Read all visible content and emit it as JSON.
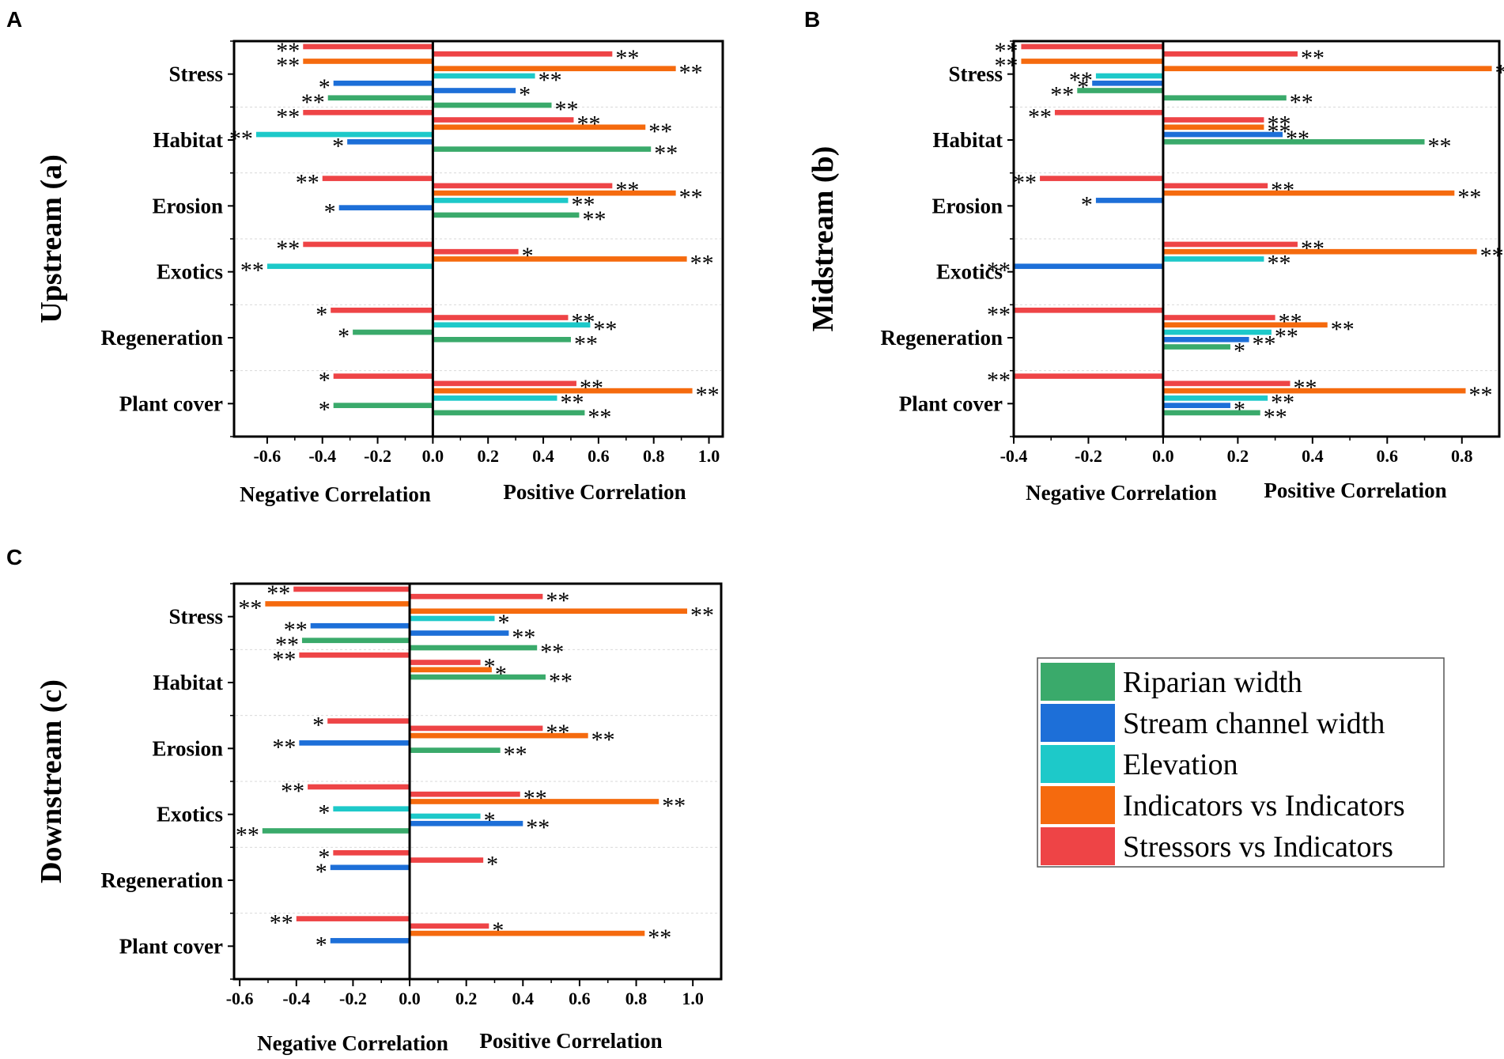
{
  "panels": [
    {
      "letter": "A"
    },
    {
      "letter": "B"
    },
    {
      "letter": "C"
    }
  ],
  "colors": {
    "Riparian width": "#3aaa6b",
    "Stream channel width": "#1d6fd8",
    "Elevation": "#1dc9c9",
    "Indicators vs Indicators": "#f56a0e",
    "Stressors vs Indicators": "#ee4446"
  },
  "chart_data": [
    {
      "type": "bar",
      "orientation": "horizontal",
      "ylabel": "Upstream (a)",
      "xlabel_negative": "Negative Correlation",
      "xlabel_positive": "Positive Correlation",
      "xlim": [
        -0.72,
        1.05
      ],
      "xticks": [
        "-0.6",
        "-0.4",
        "-0.2",
        "0.0",
        "0.2",
        "0.4",
        "0.6",
        "0.8",
        "1.0"
      ],
      "categories": [
        "Stress",
        "Habitat",
        "Erosion",
        "Exotics",
        "Regeneration",
        "Plant cover"
      ],
      "bars": [
        {
          "category": "Stress",
          "series": "Stressors vs Indicators",
          "slot": 0,
          "value": -0.47,
          "sig": "**"
        },
        {
          "category": "Stress",
          "series": "Stressors vs Indicators",
          "slot": 1,
          "value": 0.65,
          "sig": "**"
        },
        {
          "category": "Stress",
          "series": "Indicators vs Indicators",
          "slot": 2,
          "value": -0.47,
          "sig": "**"
        },
        {
          "category": "Stress",
          "series": "Indicators vs Indicators",
          "slot": 3,
          "value": 0.88,
          "sig": "**"
        },
        {
          "category": "Stress",
          "series": "Elevation",
          "slot": 4,
          "value": 0.37,
          "sig": "**"
        },
        {
          "category": "Stress",
          "series": "Stream channel width",
          "slot": 5,
          "value": -0.36,
          "sig": "*"
        },
        {
          "category": "Stress",
          "series": "Stream channel width",
          "slot": 6,
          "value": 0.3,
          "sig": "*"
        },
        {
          "category": "Stress",
          "series": "Riparian width",
          "slot": 7,
          "value": -0.38,
          "sig": "**"
        },
        {
          "category": "Stress",
          "series": "Riparian width",
          "slot": 8,
          "value": 0.43,
          "sig": "**"
        },
        {
          "category": "Habitat",
          "series": "Stressors vs Indicators",
          "slot": 0,
          "value": -0.47,
          "sig": "**"
        },
        {
          "category": "Habitat",
          "series": "Stressors vs Indicators",
          "slot": 1,
          "value": 0.51,
          "sig": "**"
        },
        {
          "category": "Habitat",
          "series": "Indicators vs Indicators",
          "slot": 2,
          "value": 0.77,
          "sig": "**"
        },
        {
          "category": "Habitat",
          "series": "Elevation",
          "slot": 3,
          "value": -0.64,
          "sig": "**"
        },
        {
          "category": "Habitat",
          "series": "Stream channel width",
          "slot": 4,
          "value": -0.31,
          "sig": "*"
        },
        {
          "category": "Habitat",
          "series": "Riparian width",
          "slot": 5,
          "value": 0.79,
          "sig": "**"
        },
        {
          "category": "Erosion",
          "series": "Stressors vs Indicators",
          "slot": 0,
          "value": -0.4,
          "sig": "**"
        },
        {
          "category": "Erosion",
          "series": "Stressors vs Indicators",
          "slot": 1,
          "value": 0.65,
          "sig": "**"
        },
        {
          "category": "Erosion",
          "series": "Indicators vs Indicators",
          "slot": 2,
          "value": 0.88,
          "sig": "**"
        },
        {
          "category": "Erosion",
          "series": "Elevation",
          "slot": 3,
          "value": 0.49,
          "sig": "**"
        },
        {
          "category": "Erosion",
          "series": "Stream channel width",
          "slot": 4,
          "value": -0.34,
          "sig": "*"
        },
        {
          "category": "Erosion",
          "series": "Riparian width",
          "slot": 5,
          "value": 0.53,
          "sig": "**"
        },
        {
          "category": "Exotics",
          "series": "Stressors vs Indicators",
          "slot": 0,
          "value": -0.47,
          "sig": "**"
        },
        {
          "category": "Exotics",
          "series": "Stressors vs Indicators",
          "slot": 1,
          "value": 0.31,
          "sig": "*"
        },
        {
          "category": "Exotics",
          "series": "Indicators vs Indicators",
          "slot": 2,
          "value": 0.92,
          "sig": "**"
        },
        {
          "category": "Exotics",
          "series": "Elevation",
          "slot": 3,
          "value": -0.6,
          "sig": "**"
        },
        {
          "category": "Regeneration",
          "series": "Stressors vs Indicators",
          "slot": 0,
          "value": -0.37,
          "sig": "*"
        },
        {
          "category": "Regeneration",
          "series": "Stressors vs Indicators",
          "slot": 1,
          "value": 0.49,
          "sig": "**"
        },
        {
          "category": "Regeneration",
          "series": "Elevation",
          "slot": 2,
          "value": 0.57,
          "sig": "**"
        },
        {
          "category": "Regeneration",
          "series": "Riparian width",
          "slot": 3,
          "value": -0.29,
          "sig": "*"
        },
        {
          "category": "Regeneration",
          "series": "Riparian width",
          "slot": 4,
          "value": 0.5,
          "sig": "**"
        },
        {
          "category": "Plant cover",
          "series": "Stressors vs Indicators",
          "slot": 0,
          "value": -0.36,
          "sig": "*"
        },
        {
          "category": "Plant cover",
          "series": "Stressors vs Indicators",
          "slot": 1,
          "value": 0.52,
          "sig": "**"
        },
        {
          "category": "Plant cover",
          "series": "Indicators vs Indicators",
          "slot": 2,
          "value": 0.94,
          "sig": "**"
        },
        {
          "category": "Plant cover",
          "series": "Elevation",
          "slot": 3,
          "value": 0.45,
          "sig": "**"
        },
        {
          "category": "Plant cover",
          "series": "Riparian width",
          "slot": 4,
          "value": -0.36,
          "sig": "*"
        },
        {
          "category": "Plant cover",
          "series": "Riparian width",
          "slot": 5,
          "value": 0.55,
          "sig": "**"
        }
      ]
    },
    {
      "type": "bar",
      "orientation": "horizontal",
      "ylabel": "Midstream (b)",
      "xlabel_negative": "Negative Correlation",
      "xlabel_positive": "Positive Correlation",
      "xlim": [
        -0.4,
        0.9
      ],
      "xticks": [
        "-0.4",
        "-0.2",
        "0.0",
        "0.2",
        "0.4",
        "0.6",
        "0.8"
      ],
      "categories": [
        "Stress",
        "Habitat",
        "Erosion",
        "Exotics",
        "Regeneration",
        "Plant cover"
      ],
      "bars": [
        {
          "category": "Stress",
          "series": "Stressors vs Indicators",
          "slot": 0,
          "value": -0.38,
          "sig": "**"
        },
        {
          "category": "Stress",
          "series": "Stressors vs Indicators",
          "slot": 1,
          "value": 0.36,
          "sig": "**"
        },
        {
          "category": "Stress",
          "series": "Indicators vs Indicators",
          "slot": 2,
          "value": -0.38,
          "sig": "**"
        },
        {
          "category": "Stress",
          "series": "Indicators vs Indicators",
          "slot": 3,
          "value": 0.88,
          "sig": "**"
        },
        {
          "category": "Stress",
          "series": "Elevation",
          "slot": 4,
          "value": -0.18,
          "sig": "**"
        },
        {
          "category": "Stress",
          "series": "Stream channel width",
          "slot": 5,
          "value": -0.19,
          "sig": "*"
        },
        {
          "category": "Stress",
          "series": "Riparian width",
          "slot": 6,
          "value": -0.23,
          "sig": "**"
        },
        {
          "category": "Stress",
          "series": "Riparian width",
          "slot": 7,
          "value": 0.33,
          "sig": "**"
        },
        {
          "category": "Habitat",
          "series": "Stressors vs Indicators",
          "slot": 0,
          "value": -0.29,
          "sig": "**"
        },
        {
          "category": "Habitat",
          "series": "Stressors vs Indicators",
          "slot": 1,
          "value": 0.27,
          "sig": "**"
        },
        {
          "category": "Habitat",
          "series": "Indicators vs Indicators",
          "slot": 2,
          "value": 0.27,
          "sig": "**"
        },
        {
          "category": "Habitat",
          "series": "Stream channel width",
          "slot": 3,
          "value": 0.32,
          "sig": "**"
        },
        {
          "category": "Habitat",
          "series": "Riparian width",
          "slot": 4,
          "value": 0.7,
          "sig": "**"
        },
        {
          "category": "Erosion",
          "series": "Stressors vs Indicators",
          "slot": 0,
          "value": -0.33,
          "sig": "**"
        },
        {
          "category": "Erosion",
          "series": "Stressors vs Indicators",
          "slot": 1,
          "value": 0.28,
          "sig": "**"
        },
        {
          "category": "Erosion",
          "series": "Indicators vs Indicators",
          "slot": 2,
          "value": 0.78,
          "sig": "**"
        },
        {
          "category": "Erosion",
          "series": "Stream channel width",
          "slot": 3,
          "value": -0.18,
          "sig": "*"
        },
        {
          "category": "Exotics",
          "series": "Stressors vs Indicators",
          "slot": 0,
          "value": 0.36,
          "sig": "**"
        },
        {
          "category": "Exotics",
          "series": "Indicators vs Indicators",
          "slot": 1,
          "value": 0.84,
          "sig": "**"
        },
        {
          "category": "Exotics",
          "series": "Elevation",
          "slot": 2,
          "value": 0.27,
          "sig": "**"
        },
        {
          "category": "Exotics",
          "series": "Stream channel width",
          "slot": 3,
          "value": -0.4,
          "sig": "**"
        },
        {
          "category": "Regeneration",
          "series": "Stressors vs Indicators",
          "slot": 0,
          "value": -0.4,
          "sig": "**"
        },
        {
          "category": "Regeneration",
          "series": "Stressors vs Indicators",
          "slot": 1,
          "value": 0.3,
          "sig": "**"
        },
        {
          "category": "Regeneration",
          "series": "Indicators vs Indicators",
          "slot": 2,
          "value": 0.44,
          "sig": "**"
        },
        {
          "category": "Regeneration",
          "series": "Elevation",
          "slot": 3,
          "value": 0.29,
          "sig": "**"
        },
        {
          "category": "Regeneration",
          "series": "Stream channel width",
          "slot": 4,
          "value": 0.23,
          "sig": "**"
        },
        {
          "category": "Regeneration",
          "series": "Riparian width",
          "slot": 5,
          "value": 0.18,
          "sig": "*"
        },
        {
          "category": "Plant cover",
          "series": "Stressors vs Indicators",
          "slot": 0,
          "value": -0.4,
          "sig": "**"
        },
        {
          "category": "Plant cover",
          "series": "Stressors vs Indicators",
          "slot": 1,
          "value": 0.34,
          "sig": "**"
        },
        {
          "category": "Plant cover",
          "series": "Indicators vs Indicators",
          "slot": 2,
          "value": 0.81,
          "sig": "**"
        },
        {
          "category": "Plant cover",
          "series": "Elevation",
          "slot": 3,
          "value": 0.28,
          "sig": "**"
        },
        {
          "category": "Plant cover",
          "series": "Stream channel width",
          "slot": 4,
          "value": 0.18,
          "sig": "*"
        },
        {
          "category": "Plant cover",
          "series": "Riparian width",
          "slot": 5,
          "value": 0.26,
          "sig": "**"
        }
      ]
    },
    {
      "type": "bar",
      "orientation": "horizontal",
      "ylabel": "Downstream (c)",
      "xlabel_negative": "Negative Correlation",
      "xlabel_positive": "Positive Correlation",
      "xlim": [
        -0.62,
        1.1
      ],
      "xticks": [
        "-0.6",
        "-0.4",
        "-0.2",
        "0.0",
        "0.2",
        "0.4",
        "0.6",
        "0.8",
        "1.0"
      ],
      "categories": [
        "Stress",
        "Habitat",
        "Erosion",
        "Exotics",
        "Regeneration",
        "Plant cover"
      ],
      "bars": [
        {
          "category": "Stress",
          "series": "Stressors vs Indicators",
          "slot": 0,
          "value": -0.41,
          "sig": "**"
        },
        {
          "category": "Stress",
          "series": "Stressors vs Indicators",
          "slot": 1,
          "value": 0.47,
          "sig": "**"
        },
        {
          "category": "Stress",
          "series": "Indicators vs Indicators",
          "slot": 2,
          "value": -0.51,
          "sig": "**"
        },
        {
          "category": "Stress",
          "series": "Indicators vs Indicators",
          "slot": 3,
          "value": 0.98,
          "sig": "**"
        },
        {
          "category": "Stress",
          "series": "Elevation",
          "slot": 4,
          "value": 0.3,
          "sig": "*"
        },
        {
          "category": "Stress",
          "series": "Stream channel width",
          "slot": 5,
          "value": -0.35,
          "sig": "**"
        },
        {
          "category": "Stress",
          "series": "Stream channel width",
          "slot": 6,
          "value": 0.35,
          "sig": "**"
        },
        {
          "category": "Stress",
          "series": "Riparian width",
          "slot": 7,
          "value": -0.38,
          "sig": "**"
        },
        {
          "category": "Stress",
          "series": "Riparian width",
          "slot": 8,
          "value": 0.45,
          "sig": "**"
        },
        {
          "category": "Habitat",
          "series": "Stressors vs Indicators",
          "slot": 0,
          "value": -0.39,
          "sig": "**"
        },
        {
          "category": "Habitat",
          "series": "Stressors vs Indicators",
          "slot": 1,
          "value": 0.25,
          "sig": "*"
        },
        {
          "category": "Habitat",
          "series": "Indicators vs Indicators",
          "slot": 2,
          "value": 0.29,
          "sig": "*"
        },
        {
          "category": "Habitat",
          "series": "Riparian width",
          "slot": 3,
          "value": 0.48,
          "sig": "**"
        },
        {
          "category": "Erosion",
          "series": "Stressors vs Indicators",
          "slot": 0,
          "value": -0.29,
          "sig": "*"
        },
        {
          "category": "Erosion",
          "series": "Stressors vs Indicators",
          "slot": 1,
          "value": 0.47,
          "sig": "**"
        },
        {
          "category": "Erosion",
          "series": "Indicators vs Indicators",
          "slot": 2,
          "value": 0.63,
          "sig": "**"
        },
        {
          "category": "Erosion",
          "series": "Stream channel width",
          "slot": 3,
          "value": -0.39,
          "sig": "**"
        },
        {
          "category": "Erosion",
          "series": "Riparian width",
          "slot": 4,
          "value": 0.32,
          "sig": "**"
        },
        {
          "category": "Exotics",
          "series": "Stressors vs Indicators",
          "slot": 0,
          "value": -0.36,
          "sig": "**"
        },
        {
          "category": "Exotics",
          "series": "Stressors vs Indicators",
          "slot": 1,
          "value": 0.39,
          "sig": "**"
        },
        {
          "category": "Exotics",
          "series": "Indicators vs Indicators",
          "slot": 2,
          "value": 0.88,
          "sig": "**"
        },
        {
          "category": "Exotics",
          "series": "Elevation",
          "slot": 3,
          "value": -0.27,
          "sig": "*"
        },
        {
          "category": "Exotics",
          "series": "Elevation",
          "slot": 4,
          "value": 0.25,
          "sig": "*"
        },
        {
          "category": "Exotics",
          "series": "Stream channel width",
          "slot": 5,
          "value": 0.4,
          "sig": "**"
        },
        {
          "category": "Exotics",
          "series": "Riparian width",
          "slot": 6,
          "value": -0.52,
          "sig": "**"
        },
        {
          "category": "Regeneration",
          "series": "Stressors vs Indicators",
          "slot": 0,
          "value": -0.27,
          "sig": "*"
        },
        {
          "category": "Regeneration",
          "series": "Stressors vs Indicators",
          "slot": 1,
          "value": 0.26,
          "sig": "*"
        },
        {
          "category": "Regeneration",
          "series": "Stream channel width",
          "slot": 2,
          "value": -0.28,
          "sig": "*"
        },
        {
          "category": "Plant cover",
          "series": "Stressors vs Indicators",
          "slot": 0,
          "value": -0.4,
          "sig": "**"
        },
        {
          "category": "Plant cover",
          "series": "Stressors vs Indicators",
          "slot": 1,
          "value": 0.28,
          "sig": "*"
        },
        {
          "category": "Plant cover",
          "series": "Indicators vs Indicators",
          "slot": 2,
          "value": 0.83,
          "sig": "**"
        },
        {
          "category": "Plant cover",
          "series": "Stream channel width",
          "slot": 3,
          "value": -0.28,
          "sig": "*"
        }
      ]
    }
  ],
  "legend": [
    "Riparian width",
    "Stream channel width",
    "Elevation",
    "Indicators vs Indicators",
    "Stressors vs Indicators"
  ]
}
